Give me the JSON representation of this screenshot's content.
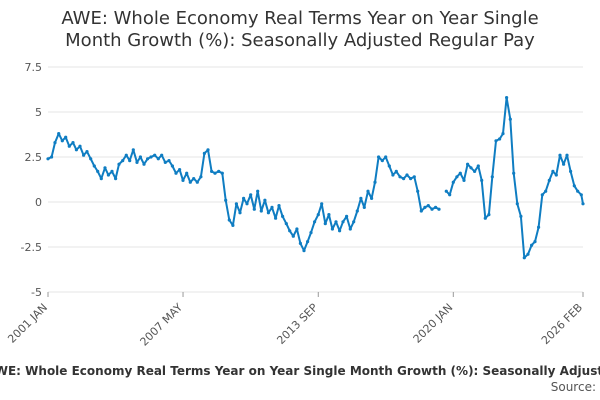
{
  "chart_data": {
    "type": "line",
    "title": "AWE: Whole Economy Real Terms Year on Year Single Month Growth (%): Seasonally Adjusted Regular Pay",
    "title_line1": "AWE: Whole Economy Real Terms Year on Year Single",
    "title_line2": "Month Growth (%): Seasonally Adjusted Regular Pay",
    "xlabel": "",
    "ylabel": "",
    "ylim": [
      -5,
      7.5
    ],
    "yticks": [
      7.5,
      5,
      2.5,
      0,
      -2.5,
      -5
    ],
    "ytick_labels": [
      "7.5",
      "5",
      "2.5",
      "0",
      "-2.5",
      "-5"
    ],
    "x_range": [
      2001.0,
      2026.08
    ],
    "xticks": [
      {
        "label": "2001 JAN",
        "value": 2001.0
      },
      {
        "label": "2007 MAY",
        "value": 2007.33
      },
      {
        "label": "2013 SEP",
        "value": 2013.67
      },
      {
        "label": "2020 JAN",
        "value": 2020.0
      },
      {
        "label": "2026 FEB",
        "value": 2026.08
      }
    ],
    "grid": true,
    "legend_label": "AWE: Whole Economy Real Terms Year on Year Single Month Growth (%): Seasonally Adjusted Regular Pay",
    "source_label": "Source:",
    "colors": {
      "line": "#0f7dc2",
      "grid": "#e6e6e6",
      "text": "#333333"
    },
    "series": [
      {
        "name": "AWE: Whole Economy Real Terms Year on Year Single Month Growth (%): Seasonally Adjusted Regular Pay",
        "points": [
          [
            2001.0,
            2.4
          ],
          [
            2001.17,
            2.5
          ],
          [
            2001.33,
            3.3
          ],
          [
            2001.5,
            3.8
          ],
          [
            2001.67,
            3.4
          ],
          [
            2001.83,
            3.6
          ],
          [
            2002.0,
            3.1
          ],
          [
            2002.17,
            3.3
          ],
          [
            2002.33,
            2.9
          ],
          [
            2002.5,
            3.1
          ],
          [
            2002.67,
            2.6
          ],
          [
            2002.83,
            2.8
          ],
          [
            2003.0,
            2.4
          ],
          [
            2003.17,
            2.0
          ],
          [
            2003.33,
            1.7
          ],
          [
            2003.5,
            1.3
          ],
          [
            2003.67,
            1.9
          ],
          [
            2003.83,
            1.5
          ],
          [
            2004.0,
            1.7
          ],
          [
            2004.17,
            1.3
          ],
          [
            2004.33,
            2.1
          ],
          [
            2004.5,
            2.3
          ],
          [
            2004.67,
            2.6
          ],
          [
            2004.83,
            2.3
          ],
          [
            2005.0,
            2.9
          ],
          [
            2005.17,
            2.2
          ],
          [
            2005.33,
            2.5
          ],
          [
            2005.5,
            2.1
          ],
          [
            2005.67,
            2.4
          ],
          [
            2005.83,
            2.5
          ],
          [
            2006.0,
            2.6
          ],
          [
            2006.17,
            2.4
          ],
          [
            2006.33,
            2.6
          ],
          [
            2006.5,
            2.2
          ],
          [
            2006.67,
            2.3
          ],
          [
            2006.83,
            2.0
          ],
          [
            2007.0,
            1.6
          ],
          [
            2007.17,
            1.8
          ],
          [
            2007.33,
            1.2
          ],
          [
            2007.5,
            1.6
          ],
          [
            2007.67,
            1.1
          ],
          [
            2007.83,
            1.3
          ],
          [
            2008.0,
            1.1
          ],
          [
            2008.17,
            1.4
          ],
          [
            2008.33,
            2.7
          ],
          [
            2008.5,
            2.9
          ],
          [
            2008.67,
            1.7
          ],
          [
            2008.83,
            1.6
          ],
          [
            2009.0,
            1.7
          ],
          [
            2009.17,
            1.6
          ],
          [
            2009.33,
            0.1
          ],
          [
            2009.5,
            -1.0
          ],
          [
            2009.67,
            -1.3
          ],
          [
            2009.83,
            -0.1
          ],
          [
            2010.0,
            -0.6
          ],
          [
            2010.17,
            0.2
          ],
          [
            2010.33,
            -0.1
          ],
          [
            2010.5,
            0.4
          ],
          [
            2010.67,
            -0.4
          ],
          [
            2010.83,
            0.6
          ],
          [
            2011.0,
            -0.5
          ],
          [
            2011.17,
            0.1
          ],
          [
            2011.33,
            -0.6
          ],
          [
            2011.5,
            -0.3
          ],
          [
            2011.67,
            -0.9
          ],
          [
            2011.83,
            -0.2
          ],
          [
            2012.0,
            -0.8
          ],
          [
            2012.17,
            -1.2
          ],
          [
            2012.33,
            -1.6
          ],
          [
            2012.5,
            -1.9
          ],
          [
            2012.67,
            -1.5
          ],
          [
            2012.83,
            -2.3
          ],
          [
            2013.0,
            -2.7
          ],
          [
            2013.17,
            -2.2
          ],
          [
            2013.33,
            -1.7
          ],
          [
            2013.5,
            -1.1
          ],
          [
            2013.67,
            -0.7
          ],
          [
            2013.83,
            -0.1
          ],
          [
            2014.0,
            -1.2
          ],
          [
            2014.17,
            -0.7
          ],
          [
            2014.33,
            -1.5
          ],
          [
            2014.5,
            -1.1
          ],
          [
            2014.67,
            -1.6
          ],
          [
            2014.83,
            -1.1
          ],
          [
            2015.0,
            -0.8
          ],
          [
            2015.17,
            -1.5
          ],
          [
            2015.33,
            -1.1
          ],
          [
            2015.5,
            -0.5
          ],
          [
            2015.67,
            0.2
          ],
          [
            2015.83,
            -0.3
          ],
          [
            2016.0,
            0.6
          ],
          [
            2016.17,
            0.2
          ],
          [
            2016.33,
            1.1
          ],
          [
            2016.5,
            2.5
          ],
          [
            2016.67,
            2.3
          ],
          [
            2016.83,
            2.5
          ],
          [
            2017.0,
            2.0
          ],
          [
            2017.17,
            1.5
          ],
          [
            2017.33,
            1.7
          ],
          [
            2017.5,
            1.4
          ],
          [
            2017.67,
            1.3
          ],
          [
            2017.83,
            1.5
          ],
          [
            2018.0,
            1.3
          ],
          [
            2018.17,
            1.4
          ],
          [
            2018.33,
            0.6
          ],
          [
            2018.5,
            -0.5
          ],
          [
            2018.67,
            -0.3
          ],
          [
            2018.83,
            -0.2
          ],
          [
            2019.0,
            -0.4
          ],
          [
            2019.17,
            -0.3
          ],
          [
            2019.33,
            -0.4
          ],
          [
            2019.5,
            null
          ],
          [
            2019.67,
            0.6
          ],
          [
            2019.83,
            0.4
          ],
          [
            2020.0,
            1.1
          ],
          [
            2020.17,
            1.4
          ],
          [
            2020.33,
            1.6
          ],
          [
            2020.5,
            1.2
          ],
          [
            2020.67,
            2.1
          ],
          [
            2020.83,
            1.9
          ],
          [
            2021.0,
            1.7
          ],
          [
            2021.17,
            2.0
          ],
          [
            2021.33,
            1.2
          ],
          [
            2021.5,
            -0.9
          ],
          [
            2021.67,
            -0.7
          ],
          [
            2021.83,
            1.4
          ],
          [
            2022.0,
            3.4
          ],
          [
            2022.17,
            3.5
          ],
          [
            2022.33,
            3.8
          ],
          [
            2022.5,
            5.8
          ],
          [
            2022.67,
            4.6
          ],
          [
            2022.83,
            1.6
          ],
          [
            2023.0,
            -0.1
          ],
          [
            2023.17,
            -0.8
          ],
          [
            2023.33,
            -3.1
          ],
          [
            2023.5,
            -2.9
          ],
          [
            2023.67,
            -2.4
          ],
          [
            2023.83,
            -2.2
          ],
          [
            2024.0,
            -1.4
          ],
          [
            2024.17,
            0.4
          ],
          [
            2024.33,
            0.6
          ],
          [
            2024.5,
            1.2
          ],
          [
            2024.67,
            1.7
          ],
          [
            2024.83,
            1.5
          ],
          [
            2025.0,
            2.6
          ],
          [
            2025.17,
            2.1
          ],
          [
            2025.33,
            2.6
          ],
          [
            2025.5,
            1.7
          ],
          [
            2025.67,
            0.9
          ],
          [
            2025.83,
            0.6
          ],
          [
            2026.0,
            0.4
          ],
          [
            2026.08,
            -0.1
          ]
        ]
      }
    ]
  }
}
